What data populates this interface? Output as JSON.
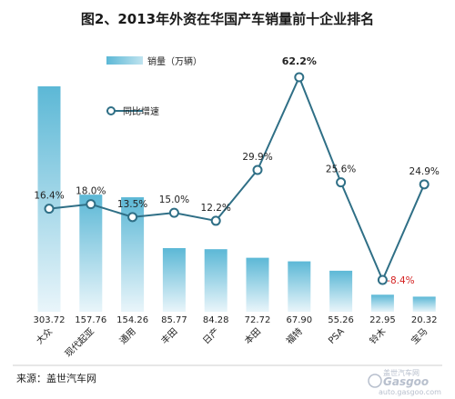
{
  "chart_data": {
    "type": "bar",
    "title": "图2、2013年外资在华国产车销量前十企业排名",
    "categories": [
      "大众",
      "现代起亚",
      "通用",
      "丰田",
      "日产",
      "本田",
      "福特",
      "PSA",
      "铃木",
      "宝马"
    ],
    "series": [
      {
        "name": "销量（万辆）",
        "type": "bar",
        "values": [
          303.72,
          157.76,
          154.26,
          85.77,
          84.28,
          72.72,
          67.9,
          55.26,
          22.95,
          20.32
        ],
        "labels": [
          "303.72",
          "157.76",
          "154.26",
          "85.77",
          "84.28",
          "72.72",
          "67.90",
          "55.26",
          "22.95",
          "20.32"
        ]
      },
      {
        "name": "同比增速",
        "type": "line",
        "values": [
          16.4,
          18.0,
          13.5,
          15.0,
          12.2,
          29.9,
          62.2,
          25.6,
          -8.4,
          24.9
        ],
        "labels": [
          "16.4%",
          "18.0%",
          "13.5%",
          "15.0%",
          "12.2%",
          "29.9%",
          "62.2%",
          "25.6%",
          "-8.4%",
          "24.9%"
        ]
      }
    ],
    "legend": "top-left",
    "grid": false,
    "colors": {
      "bar_top": "#5cb8d6",
      "bar_bottom": "#e9f5fa",
      "line": "#2f6f86",
      "marker_fill": "#ffffff",
      "negative_label": "#d42222"
    }
  },
  "source": "来源：盖世汽车网",
  "watermark": {
    "brand": "Gasgoo",
    "sub": "盖世汽车网",
    "url": "auto.gasgoo.com"
  }
}
